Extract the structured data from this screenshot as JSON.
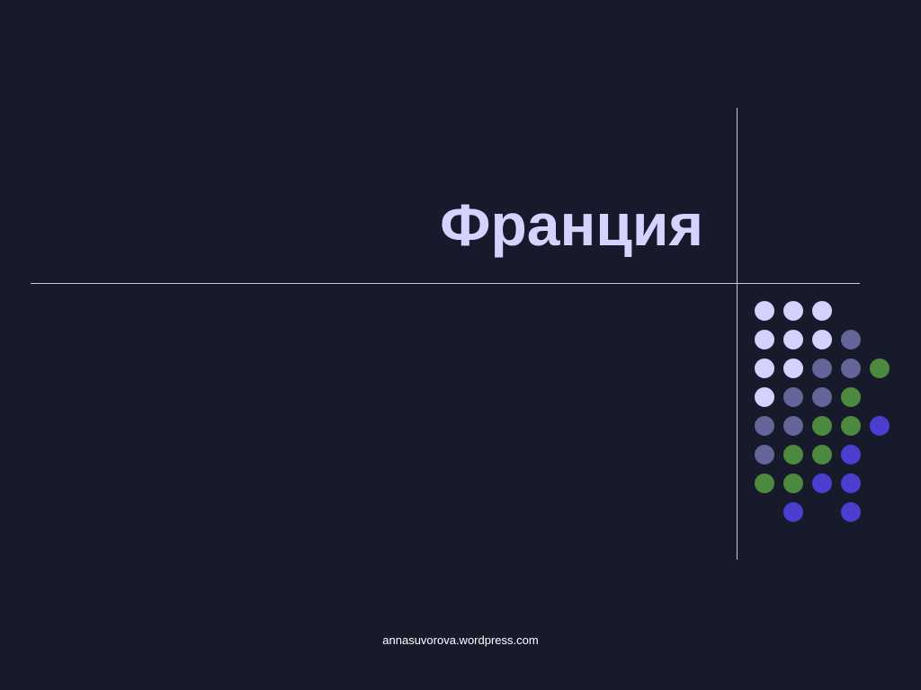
{
  "slide": {
    "title": "Франция",
    "footer": "annasuvorova.wordpress.com"
  },
  "colors": {
    "background": "#171a2b",
    "title": "#d4d2ff",
    "lines": "#c9c9d1",
    "dot_light": "#d4d2ff",
    "dot_muted": "#64649a",
    "dot_green": "#4d8a3f",
    "dot_blue": "#4b3fcf"
  },
  "dot_grid": [
    [
      "light",
      "light",
      "light",
      "",
      ""
    ],
    [
      "light",
      "light",
      "light",
      "muted",
      ""
    ],
    [
      "light",
      "light",
      "muted",
      "muted",
      "green"
    ],
    [
      "light",
      "muted",
      "muted",
      "green",
      ""
    ],
    [
      "muted",
      "muted",
      "green",
      "green",
      "blue"
    ],
    [
      "muted",
      "green",
      "green",
      "blue",
      ""
    ],
    [
      "green",
      "green",
      "blue",
      "blue",
      ""
    ],
    [
      "",
      "blue",
      "",
      "blue",
      ""
    ]
  ]
}
